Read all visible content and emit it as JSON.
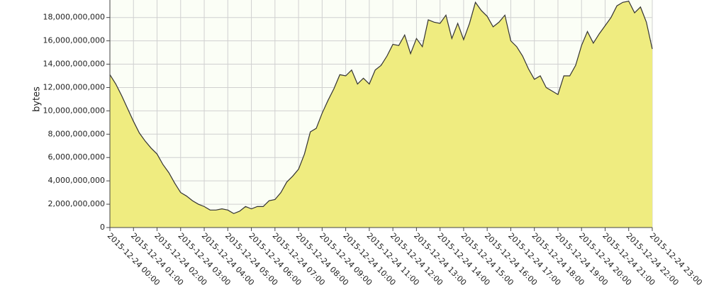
{
  "chart_data": {
    "type": "area",
    "ylabel": "bytes",
    "color": "#efec80",
    "line_color": "#333333",
    "grid": true,
    "xlim": [
      0,
      23
    ],
    "xticks": [
      {
        "value": 0,
        "label": "2015-12-24 00:00"
      },
      {
        "value": 1,
        "label": "2015-12-24 01:00"
      },
      {
        "value": 2,
        "label": "2015-12-24 02:00"
      },
      {
        "value": 3,
        "label": "2015-12-24 03:00"
      },
      {
        "value": 4,
        "label": "2015-12-24 04:00"
      },
      {
        "value": 5,
        "label": "2015-12-24 05:00"
      },
      {
        "value": 6,
        "label": "2015-12-24 06:00"
      },
      {
        "value": 7,
        "label": "2015-12-24 07:00"
      },
      {
        "value": 8,
        "label": "2015-12-24 08:00"
      },
      {
        "value": 9,
        "label": "2015-12-24 09:00"
      },
      {
        "value": 10,
        "label": "2015-12-24 10:00"
      },
      {
        "value": 11,
        "label": "2015-12-24 11:00"
      },
      {
        "value": 12,
        "label": "2015-12-24 12:00"
      },
      {
        "value": 13,
        "label": "2015-12-24 13:00"
      },
      {
        "value": 14,
        "label": "2015-12-24 14:00"
      },
      {
        "value": 15,
        "label": "2015-12-24 15:00"
      },
      {
        "value": 16,
        "label": "2015-12-24 16:00"
      },
      {
        "value": 17,
        "label": "2015-12-24 17:00"
      },
      {
        "value": 18,
        "label": "2015-12-24 18:00"
      },
      {
        "value": 19,
        "label": "2015-12-24 19:00"
      },
      {
        "value": 20,
        "label": "2015-12-24 20:00"
      },
      {
        "value": 21,
        "label": "2015-12-24 21:00"
      },
      {
        "value": 22,
        "label": "2015-12-24 22:00"
      },
      {
        "value": 23,
        "label": "2015-12-24 23:00"
      }
    ],
    "ylim": [
      0,
      19500000000
    ],
    "yticks": [
      0,
      {
        "value": 2000000000,
        "label": "2,000,000,000"
      },
      {
        "value": 4000000000,
        "label": "4,000,000,000"
      },
      {
        "value": 6000000000,
        "label": "6,000,000,000"
      },
      {
        "value": 8000000000,
        "label": "8,000,000,000"
      },
      {
        "value": 10000000000,
        "label": "10,000,000,000"
      },
      {
        "value": 12000000000,
        "label": "12,000,000,000"
      },
      {
        "value": 14000000000,
        "label": "14,000,000,000"
      },
      {
        "value": 16000000000,
        "label": "16,000,000,000"
      },
      {
        "value": 18000000000,
        "label": "18,000,000,000"
      }
    ],
    "x": [
      0,
      0.25,
      0.5,
      0.75,
      1,
      1.25,
      1.5,
      1.75,
      2,
      2.25,
      2.5,
      2.75,
      3,
      3.25,
      3.5,
      3.75,
      4,
      4.25,
      4.5,
      4.75,
      5,
      5.25,
      5.5,
      5.75,
      6,
      6.25,
      6.5,
      6.75,
      7,
      7.25,
      7.5,
      7.75,
      8,
      8.25,
      8.5,
      8.75,
      9,
      9.25,
      9.5,
      9.75,
      10,
      10.25,
      10.5,
      10.75,
      11,
      11.25,
      11.5,
      11.75,
      12,
      12.25,
      12.5,
      12.75,
      13,
      13.25,
      13.5,
      13.75,
      14,
      14.25,
      14.5,
      14.75,
      15,
      15.25,
      15.5,
      15.75,
      16,
      16.25,
      16.5,
      16.75,
      17,
      17.25,
      17.5,
      17.75,
      18,
      18.25,
      18.5,
      18.75,
      19,
      19.25,
      19.5,
      19.75,
      20,
      20.25,
      20.5,
      20.75,
      21,
      21.25,
      21.5,
      21.75,
      22,
      22.25,
      22.5,
      22.75,
      23
    ],
    "values": [
      13100000000,
      12300000000,
      11300000000,
      10200000000,
      9100000000,
      8100000000,
      7400000000,
      6800000000,
      6300000000,
      5400000000,
      4700000000,
      3800000000,
      3000000000,
      2700000000,
      2300000000,
      2000000000,
      1800000000,
      1500000000,
      1500000000,
      1600000000,
      1500000000,
      1200000000,
      1400000000,
      1800000000,
      1600000000,
      1800000000,
      1800000000,
      2300000000,
      2400000000,
      3000000000,
      3900000000,
      4400000000,
      5000000000,
      6300000000,
      8200000000,
      8500000000,
      9800000000,
      10900000000,
      11900000000,
      13100000000,
      13000000000,
      13500000000,
      12300000000,
      12800000000,
      12300000000,
      13500000000,
      13900000000,
      14700000000,
      15700000000,
      15600000000,
      16500000000,
      14900000000,
      16200000000,
      15500000000,
      17800000000,
      17600000000,
      17500000000,
      18200000000,
      16200000000,
      17500000000,
      16100000000,
      17500000000,
      19300000000,
      18600000000,
      18100000000,
      17200000000,
      17600000000,
      18200000000,
      16000000000,
      15500000000,
      14700000000,
      13600000000,
      12700000000,
      13000000000,
      12000000000,
      11700000000,
      11400000000,
      13000000000,
      13000000000,
      13900000000,
      15600000000,
      16800000000,
      15800000000,
      16600000000,
      17300000000,
      18000000000,
      19000000000,
      19300000000,
      19400000000,
      18400000000,
      18900000000,
      17600000000,
      15300000000
    ]
  }
}
